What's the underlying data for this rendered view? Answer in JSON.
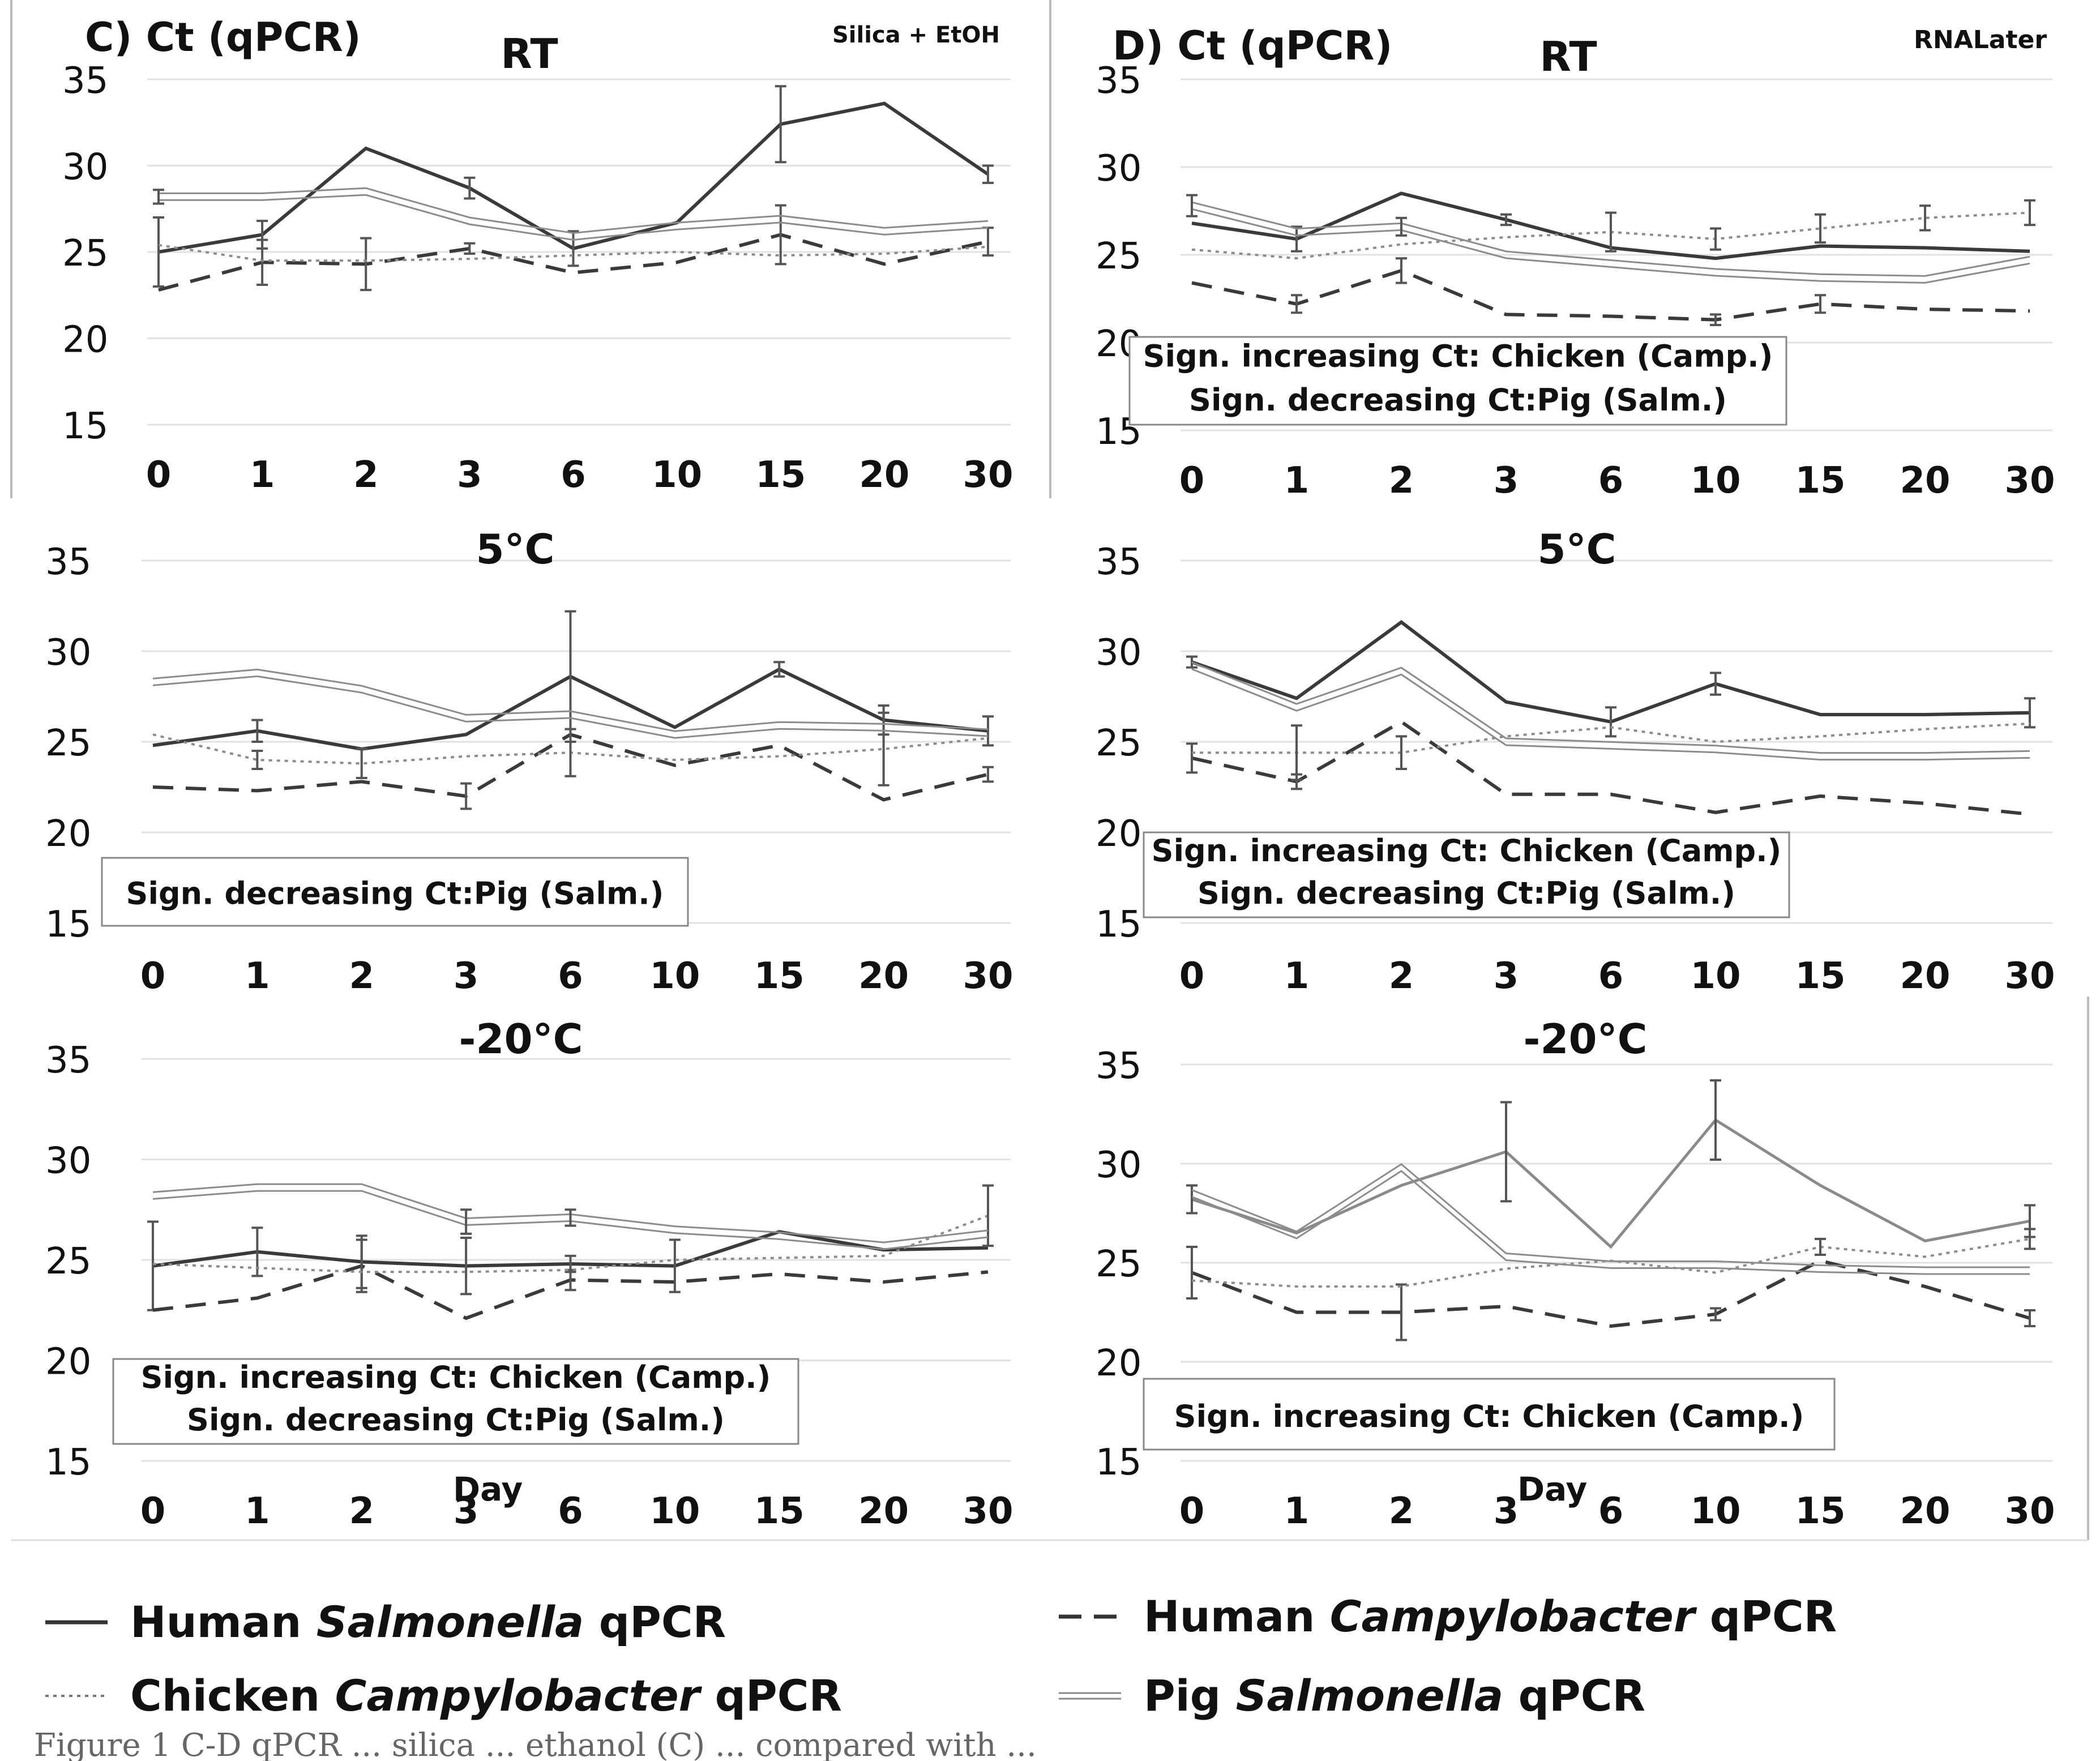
{
  "figure": {
    "label_left": "C) Ct (qPCR)",
    "label_right": "D) Ct (qPCR)",
    "method_left": "Silica + EtOH",
    "method_right": "RNALater",
    "xlabel": "Day",
    "caption_fragment": "Figure 1 C-D qPCR ... silica ... ethanol (C) ... compared with ..."
  },
  "legend": {
    "human_salmonella": {
      "prefix": "Human ",
      "organism": "Salmonella",
      "suffix": " qPCR"
    },
    "human_campylobacter": {
      "prefix": "Human ",
      "organism": "Campylobacter",
      "suffix": " qPCR"
    },
    "chicken_campylobacter": {
      "prefix": "Chicken ",
      "organism": "Campylobacter",
      "suffix": " qPCR"
    },
    "pig_salmonella": {
      "prefix": "Pig ",
      "organism": "Salmonella",
      "suffix": " qPCR"
    }
  },
  "chart_data": [
    {
      "type": "line",
      "id": "C_RT",
      "title": "RT",
      "column": "C",
      "categories": [
        "0",
        "1",
        "2",
        "3",
        "6",
        "10",
        "15",
        "20",
        "30"
      ],
      "ylim": [
        15,
        35
      ],
      "yticks": [
        15,
        20,
        25,
        30,
        35
      ],
      "annotation": [],
      "series": [
        {
          "name": "Human Salmonella qPCR",
          "style": "solid",
          "values": [
            25.0,
            26.0,
            31.0,
            28.7,
            25.2,
            26.7,
            32.4,
            33.6,
            29.5
          ],
          "errors": [
            2.0,
            0.8,
            0,
            0.6,
            1.0,
            0,
            2.2,
            0,
            0.5
          ]
        },
        {
          "name": "Human Campylobacter qPCR",
          "style": "dashed",
          "values": [
            22.8,
            24.4,
            24.3,
            25.2,
            23.8,
            24.4,
            26.0,
            24.3,
            25.6
          ],
          "errors": [
            0,
            1.3,
            1.5,
            0.3,
            0,
            0,
            1.7,
            0,
            0.8
          ]
        },
        {
          "name": "Chicken Campylobacter qPCR",
          "style": "dotted",
          "values": [
            25.4,
            24.5,
            24.5,
            24.6,
            24.8,
            25.0,
            24.8,
            24.9,
            25.3
          ],
          "errors": [
            0,
            0,
            0,
            0,
            0,
            0,
            0,
            0,
            0
          ]
        },
        {
          "name": "Pig Salmonella qPCR",
          "style": "double",
          "values": [
            28.2,
            28.2,
            28.5,
            26.8,
            25.9,
            26.5,
            26.9,
            26.2,
            26.6
          ],
          "errors": [
            0.4,
            0,
            0,
            0,
            0,
            0,
            0,
            0,
            0
          ]
        }
      ]
    },
    {
      "type": "line",
      "id": "D_RT",
      "title": "RT",
      "column": "D",
      "categories": [
        "0",
        "1",
        "2",
        "3",
        "6",
        "10",
        "15",
        "20",
        "30"
      ],
      "ylim": [
        15,
        35
      ],
      "yticks": [
        15,
        20,
        25,
        30,
        35
      ],
      "annotation": [
        "Sign. increasing Ct: Chicken (Camp.)",
        "Sign. decreasing Ct:Pig (Salm.)"
      ],
      "series": [
        {
          "name": "Human Salmonella qPCR",
          "style": "solid",
          "values": [
            26.8,
            25.9,
            28.5,
            27.0,
            25.4,
            24.8,
            25.5,
            25.4,
            25.2
          ],
          "errors": [
            0,
            0.7,
            0,
            0.3,
            0,
            0,
            0,
            0,
            0
          ]
        },
        {
          "name": "Human Campylobacter qPCR",
          "style": "dashed",
          "values": [
            23.4,
            22.2,
            24.1,
            21.6,
            21.5,
            21.3,
            22.2,
            21.9,
            21.8
          ],
          "errors": [
            0,
            0.5,
            0.7,
            0,
            0,
            0.3,
            0.5,
            0,
            0
          ]
        },
        {
          "name": "Chicken Campylobacter qPCR",
          "style": "dotted",
          "values": [
            25.3,
            24.8,
            25.6,
            26.0,
            26.3,
            25.9,
            26.5,
            27.1,
            27.4
          ],
          "errors": [
            0,
            0,
            0,
            0,
            1.1,
            0.6,
            0.8,
            0.7,
            0.7
          ]
        },
        {
          "name": "Pig Salmonella qPCR",
          "style": "double",
          "values": [
            27.8,
            26.3,
            26.6,
            25.0,
            24.5,
            24.0,
            23.7,
            23.6,
            24.7
          ],
          "errors": [
            0.6,
            0,
            0.5,
            0,
            0,
            0,
            0,
            0,
            0
          ]
        }
      ]
    },
    {
      "type": "line",
      "id": "C_5C",
      "title": "5°C",
      "column": "C",
      "categories": [
        "0",
        "1",
        "2",
        "3",
        "6",
        "10",
        "15",
        "20",
        "30"
      ],
      "ylim": [
        15,
        35
      ],
      "yticks": [
        15,
        20,
        25,
        30,
        35
      ],
      "annotation": [
        "Sign. decreasing Ct:Pig (Salm.)"
      ],
      "series": [
        {
          "name": "Human Salmonella qPCR",
          "style": "solid",
          "values": [
            24.8,
            25.6,
            24.6,
            25.4,
            28.6,
            25.8,
            29.0,
            26.2,
            25.6
          ],
          "errors": [
            0,
            0.6,
            0,
            0,
            3.6,
            0,
            0.4,
            0.8,
            0.8
          ]
        },
        {
          "name": "Human Campylobacter qPCR",
          "style": "dashed",
          "values": [
            22.5,
            22.3,
            22.8,
            22.0,
            25.4,
            23.7,
            24.8,
            21.8,
            23.2
          ],
          "errors": [
            0,
            0,
            0,
            0.7,
            0,
            0,
            0,
            0,
            0.4
          ]
        },
        {
          "name": "Chicken Campylobacter qPCR",
          "style": "dotted",
          "values": [
            25.4,
            24.0,
            23.8,
            24.2,
            24.4,
            24.0,
            24.2,
            24.6,
            25.2
          ],
          "errors": [
            0,
            0.5,
            0.8,
            0,
            1.3,
            0,
            0,
            2.0,
            0
          ]
        },
        {
          "name": "Pig Salmonella qPCR",
          "style": "double",
          "values": [
            28.3,
            28.8,
            27.9,
            26.3,
            26.5,
            25.4,
            25.9,
            25.8,
            25.5
          ],
          "errors": [
            0,
            0,
            0,
            0,
            0,
            0,
            0,
            0,
            0
          ]
        }
      ]
    },
    {
      "type": "line",
      "id": "D_5C",
      "title": "5°C",
      "column": "D",
      "categories": [
        "0",
        "1",
        "2",
        "3",
        "6",
        "10",
        "15",
        "20",
        "30"
      ],
      "ylim": [
        15,
        35
      ],
      "yticks": [
        15,
        20,
        25,
        30,
        35
      ],
      "annotation": [
        "Sign. increasing Ct: Chicken (Camp.)",
        "Sign. decreasing Ct:Pig (Salm.)"
      ],
      "series": [
        {
          "name": "Human Salmonella qPCR",
          "style": "solid",
          "values": [
            29.4,
            27.4,
            31.6,
            27.2,
            26.1,
            28.2,
            26.5,
            26.5,
            26.6
          ],
          "errors": [
            0.3,
            0,
            0,
            0,
            0.8,
            0.6,
            0,
            0,
            0.8
          ]
        },
        {
          "name": "Human Campylobacter qPCR",
          "style": "dashed",
          "values": [
            24.1,
            22.8,
            26.1,
            22.1,
            22.1,
            21.1,
            22.0,
            21.6,
            21.0
          ],
          "errors": [
            0.8,
            0.4,
            0,
            0,
            0,
            0,
            0,
            0,
            0
          ]
        },
        {
          "name": "Chicken Campylobacter qPCR",
          "style": "dotted",
          "values": [
            24.4,
            24.4,
            24.4,
            25.3,
            25.8,
            25.0,
            25.3,
            25.7,
            26.0
          ],
          "errors": [
            0,
            1.5,
            0.9,
            0,
            0,
            0,
            0,
            0,
            0
          ]
        },
        {
          "name": "Pig Salmonella qPCR",
          "style": "double",
          "values": [
            29.2,
            26.9,
            28.9,
            25.0,
            24.8,
            24.6,
            24.2,
            24.2,
            24.3
          ],
          "errors": [
            0,
            0,
            0,
            0,
            0,
            0,
            0,
            0,
            0
          ]
        }
      ]
    },
    {
      "type": "line",
      "id": "C_m20C",
      "title": "-20°C",
      "column": "C",
      "categories": [
        "0",
        "1",
        "2",
        "3",
        "6",
        "10",
        "15",
        "20",
        "30"
      ],
      "ylim": [
        15,
        35
      ],
      "yticks": [
        15,
        20,
        25,
        30,
        35
      ],
      "annotation": [
        "Sign. increasing Ct: Chicken (Camp.)",
        "Sign. decreasing Ct:Pig (Salm.)"
      ],
      "series": [
        {
          "name": "Human Salmonella qPCR",
          "style": "solid",
          "values": [
            24.7,
            25.4,
            24.9,
            24.7,
            24.8,
            24.7,
            26.4,
            25.5,
            25.6
          ],
          "errors": [
            2.2,
            1.2,
            1.3,
            1.4,
            0.4,
            1.3,
            0,
            0,
            0
          ]
        },
        {
          "name": "Human Campylobacter qPCR",
          "style": "dashed",
          "values": [
            22.5,
            23.1,
            24.7,
            22.1,
            24.0,
            23.9,
            24.3,
            23.9,
            24.4
          ],
          "errors": [
            0,
            0,
            1.3,
            0,
            0.5,
            0,
            0,
            0,
            0
          ]
        },
        {
          "name": "Chicken Campylobacter qPCR",
          "style": "dotted",
          "values": [
            24.8,
            24.6,
            24.4,
            24.4,
            24.5,
            25.0,
            25.1,
            25.2,
            27.2
          ],
          "errors": [
            0,
            0,
            0,
            0,
            0,
            0,
            0,
            0,
            1.5
          ]
        },
        {
          "name": "Pig Salmonella qPCR",
          "style": "double",
          "values": [
            28.2,
            28.6,
            28.6,
            26.9,
            27.1,
            26.5,
            26.2,
            25.7,
            26.3
          ],
          "errors": [
            0,
            0,
            0,
            0.6,
            0.4,
            0,
            0,
            0,
            0
          ]
        }
      ]
    },
    {
      "type": "line",
      "id": "D_m20C",
      "title": "-20°C",
      "column": "D",
      "categories": [
        "0",
        "1",
        "2",
        "3",
        "6",
        "10",
        "15",
        "20",
        "30"
      ],
      "ylim": [
        15,
        35
      ],
      "yticks": [
        15,
        20,
        25,
        30,
        35
      ],
      "annotation": [
        "Sign. increasing Ct: Chicken (Camp.)"
      ],
      "series": [
        {
          "name": "Human Salmonella qPCR",
          "style": "solid_gray",
          "values": [
            28.2,
            26.5,
            28.9,
            30.6,
            25.8,
            32.2,
            28.9,
            26.1,
            27.1
          ],
          "errors": [
            0.7,
            0,
            0,
            2.5,
            0,
            2.0,
            0,
            0,
            0.8
          ]
        },
        {
          "name": "Human Campylobacter qPCR",
          "style": "dashed",
          "values": [
            24.5,
            22.5,
            22.5,
            22.8,
            21.8,
            22.4,
            25.1,
            23.8,
            22.2
          ],
          "errors": [
            1.3,
            0,
            1.4,
            0,
            0,
            0.3,
            0,
            0,
            0.4
          ]
        },
        {
          "name": "Chicken Campylobacter qPCR",
          "style": "dotted",
          "values": [
            24.1,
            23.8,
            23.8,
            24.7,
            25.1,
            24.5,
            25.8,
            25.3,
            26.2
          ],
          "errors": [
            0,
            0,
            0,
            0,
            0,
            0,
            0.4,
            0,
            0.5
          ]
        },
        {
          "name": "Pig Salmonella qPCR",
          "style": "double",
          "values": [
            28.5,
            26.4,
            29.8,
            25.3,
            24.9,
            24.9,
            24.7,
            24.6,
            24.6
          ],
          "errors": [
            0,
            0,
            0,
            0,
            0,
            0,
            0,
            0,
            0
          ]
        }
      ]
    }
  ]
}
